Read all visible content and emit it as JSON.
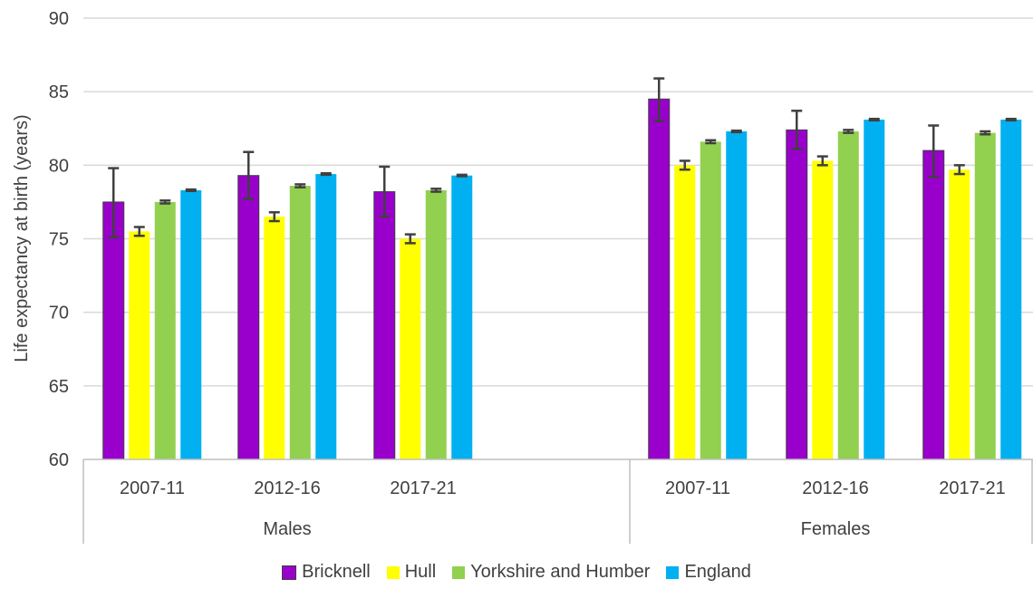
{
  "chart_data": {
    "type": "bar",
    "ylabel": "Life expectancy at birth (years)",
    "ylim": [
      60,
      90
    ],
    "yticks": [
      60,
      65,
      70,
      75,
      80,
      85,
      90
    ],
    "grid": true,
    "legend_position": "bottom",
    "groups": [
      {
        "label": "Males",
        "categories": [
          "2007-11",
          "2012-16",
          "2017-21"
        ]
      },
      {
        "label": "Females",
        "categories": [
          "2007-11",
          "2012-16",
          "2017-21"
        ]
      }
    ],
    "series": [
      {
        "name": "Bricknell",
        "color": "#9900cc",
        "values": [
          77.5,
          79.3,
          78.2,
          84.5,
          82.4,
          81.0
        ],
        "error_low": [
          75.1,
          77.7,
          76.5,
          83.0,
          81.1,
          79.2
        ],
        "error_high": [
          79.8,
          80.9,
          79.9,
          85.9,
          83.7,
          82.7
        ]
      },
      {
        "name": "Hull",
        "color": "#ffff00",
        "values": [
          75.5,
          76.5,
          75.0,
          80.0,
          80.3,
          79.7
        ],
        "error_low": [
          75.2,
          76.2,
          74.7,
          79.7,
          80.0,
          79.4
        ],
        "error_high": [
          75.8,
          76.8,
          75.3,
          80.3,
          80.6,
          80.0
        ]
      },
      {
        "name": "Yorkshire and Humber",
        "color": "#92d050",
        "values": [
          77.5,
          78.6,
          78.3,
          81.6,
          82.3,
          82.2
        ],
        "error_low": [
          77.4,
          78.5,
          78.2,
          81.5,
          82.2,
          82.1
        ],
        "error_high": [
          77.6,
          78.7,
          78.4,
          81.7,
          82.4,
          82.3
        ]
      },
      {
        "name": "England",
        "color": "#00b0f0",
        "values": [
          78.3,
          79.4,
          79.3,
          82.3,
          83.1,
          83.1
        ],
        "error_low": [
          78.25,
          79.35,
          79.25,
          82.25,
          83.05,
          83.05
        ],
        "error_high": [
          78.35,
          79.45,
          79.35,
          82.35,
          83.15,
          83.15
        ]
      }
    ]
  }
}
